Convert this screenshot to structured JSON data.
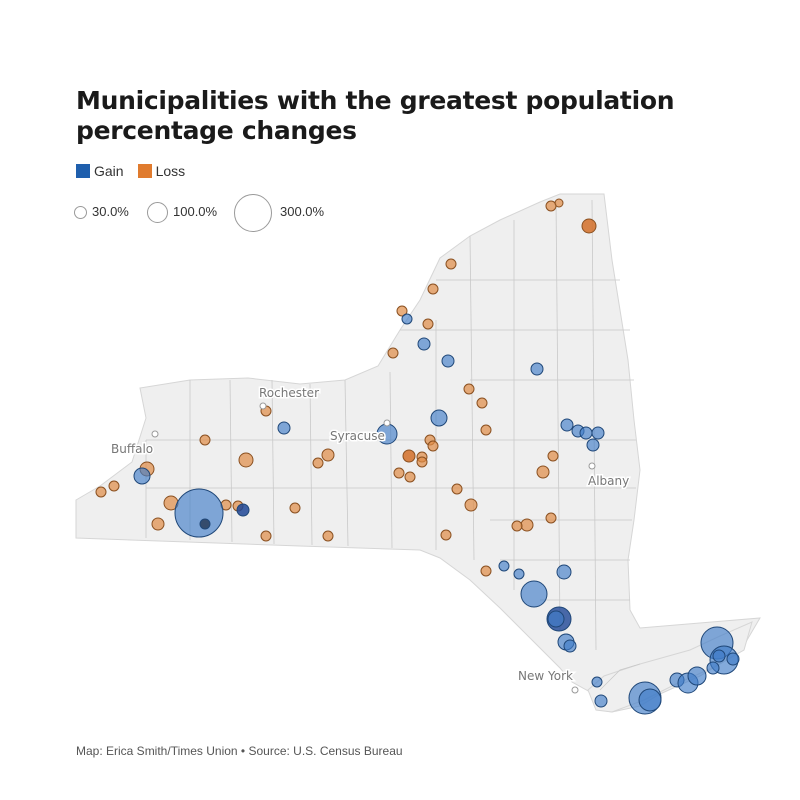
{
  "title": "Municipalities with the greatest population percentage changes",
  "legend": {
    "colors": [
      {
        "label": "Gain",
        "color": "#1f5fad"
      },
      {
        "label": "Loss",
        "color": "#e07b2e"
      }
    ],
    "sizes": [
      {
        "label": "30.0%",
        "value": 30
      },
      {
        "label": "100.0%",
        "value": 100
      },
      {
        "label": "300.0%",
        "value": 300
      }
    ]
  },
  "cities": [
    "Rochester",
    "Buffalo",
    "Syracuse",
    "Albany",
    "New York"
  ],
  "colors": {
    "gain_fill": "rgba(65,125,200,0.65)",
    "gain_stroke": "#1f4778",
    "loss_fill": "rgba(224,140,70,0.70)",
    "loss_stroke": "#8a5020",
    "state_fill": "#efefef",
    "county_line": "#c9c9c9"
  },
  "credit": "Map: Erica Smith/Times Union • Source: U.S. Census Bureau"
}
